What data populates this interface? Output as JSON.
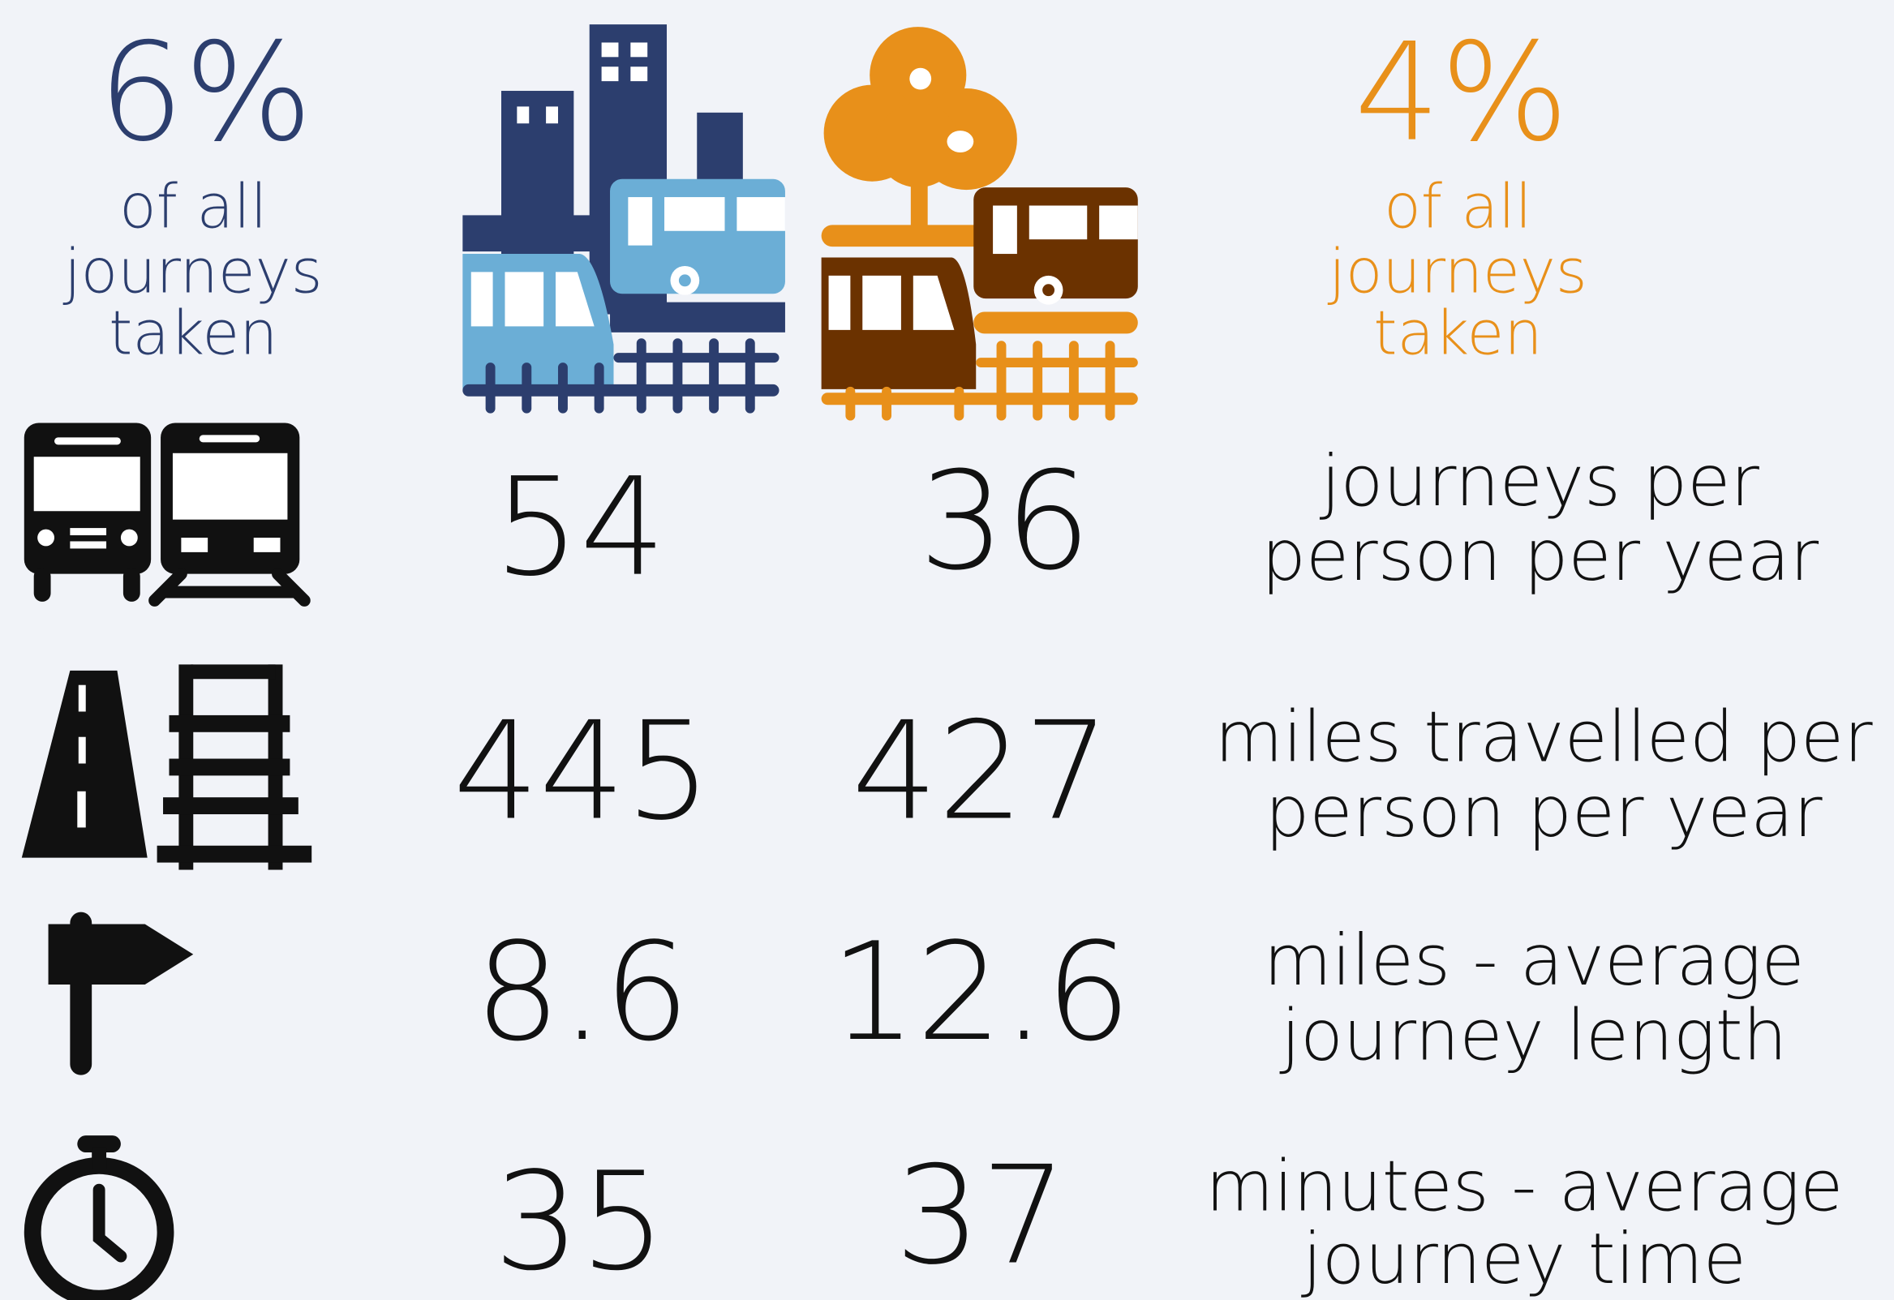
{
  "urban": {
    "share": "6%",
    "caption": [
      "of all",
      "journeys",
      "taken"
    ]
  },
  "rural": {
    "share": "4%",
    "caption": [
      "of all",
      "journeys",
      "taken"
    ]
  },
  "rows": [
    {
      "urban": 54,
      "rural": 36,
      "label": [
        "journeys per",
        "person per year"
      ]
    },
    {
      "urban": 445,
      "rural": 427,
      "label": [
        "miles travelled per",
        "person per year"
      ]
    },
    {
      "urban": 8.6,
      "rural": 12.6,
      "label": [
        "miles - average",
        "journey length"
      ]
    },
    {
      "urban": 35,
      "rural": 37,
      "label": [
        "minutes - average",
        "journey time"
      ]
    }
  ]
}
